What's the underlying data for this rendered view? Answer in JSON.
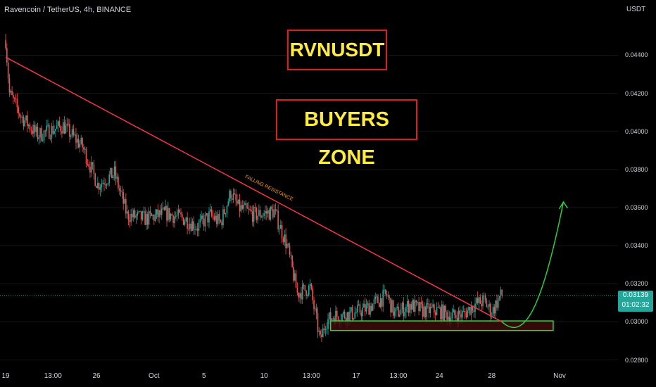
{
  "header": {
    "title": "Ravencoin / TetherUS, 4h, BINANCE",
    "currency": "USDT"
  },
  "annotations": {
    "symbol_label": "RVNUSDT",
    "zone_label": "BUYERS ZONE",
    "trendline_label": "FALLING RESISTANCE"
  },
  "price_badge": {
    "price": "0.03139",
    "countdown": "01:02:32"
  },
  "colors": {
    "up": "#26a69a",
    "down": "#ef5350",
    "trendline": "#f23645",
    "zone_border": "#39d239",
    "zone_fill": "#3c0a0a",
    "projection": "#2ecc40",
    "label_text": "#ffeb3b",
    "label_border": "#e01c1c"
  },
  "chart_data": {
    "type": "candlestick",
    "title": "Ravencoin / TetherUS, 4h, BINANCE",
    "ylabel": "USDT",
    "ylim": [
      0.0278,
      0.0452
    ],
    "y_ticks": [
      "0.04400",
      "0.04200",
      "0.04000",
      "0.03800",
      "0.03600",
      "0.03400",
      "0.03200",
      "0.03000",
      "0.02800"
    ],
    "y_tick_values": [
      0.044,
      0.042,
      0.04,
      0.038,
      0.036,
      0.034,
      0.032,
      0.03,
      0.028
    ],
    "x_ticks": [
      "19",
      "13:00",
      "26",
      "Oct",
      "5",
      "10",
      "13:00",
      "17",
      "13:00",
      "24",
      "28",
      "Nov"
    ],
    "x_tick_index": [
      0,
      37,
      71,
      116,
      155,
      202,
      239,
      274,
      307,
      339,
      380,
      433
    ],
    "num_bars": 456,
    "last_price": 0.03139,
    "anchors": [
      [
        0,
        0.0448
      ],
      [
        3,
        0.042
      ],
      [
        12,
        0.0408
      ],
      [
        25,
        0.0398
      ],
      [
        45,
        0.0403
      ],
      [
        60,
        0.0392
      ],
      [
        72,
        0.0372
      ],
      [
        85,
        0.0378
      ],
      [
        95,
        0.0356
      ],
      [
        110,
        0.0354
      ],
      [
        125,
        0.0357
      ],
      [
        140,
        0.0354
      ],
      [
        150,
        0.035
      ],
      [
        160,
        0.0356
      ],
      [
        168,
        0.0352
      ],
      [
        176,
        0.0368
      ],
      [
        182,
        0.036
      ],
      [
        195,
        0.0356
      ],
      [
        210,
        0.0358
      ],
      [
        220,
        0.034
      ],
      [
        228,
        0.0315
      ],
      [
        238,
        0.0318
      ],
      [
        246,
        0.029
      ],
      [
        250,
        0.03
      ],
      [
        256,
        0.0303
      ],
      [
        270,
        0.0304
      ],
      [
        282,
        0.0307
      ],
      [
        298,
        0.0314
      ],
      [
        304,
        0.0304
      ],
      [
        316,
        0.0309
      ],
      [
        326,
        0.0306
      ],
      [
        338,
        0.0306
      ],
      [
        348,
        0.0303
      ],
      [
        358,
        0.0304
      ],
      [
        366,
        0.0309
      ],
      [
        374,
        0.0311
      ],
      [
        380,
        0.0305
      ],
      [
        386,
        0.0313
      ],
      [
        388,
        0.03139
      ]
    ],
    "trendline": [
      [
        0,
        0.0439
      ],
      [
        388,
        0.03
      ]
    ],
    "buyers_zone": {
      "x_start": 254,
      "x_end": 428,
      "y_low": 0.02955,
      "y_high": 0.03005
    },
    "projection": [
      [
        388,
        0.03
      ],
      [
        404,
        0.0297
      ],
      [
        418,
        0.031
      ],
      [
        436,
        0.0363
      ]
    ]
  }
}
